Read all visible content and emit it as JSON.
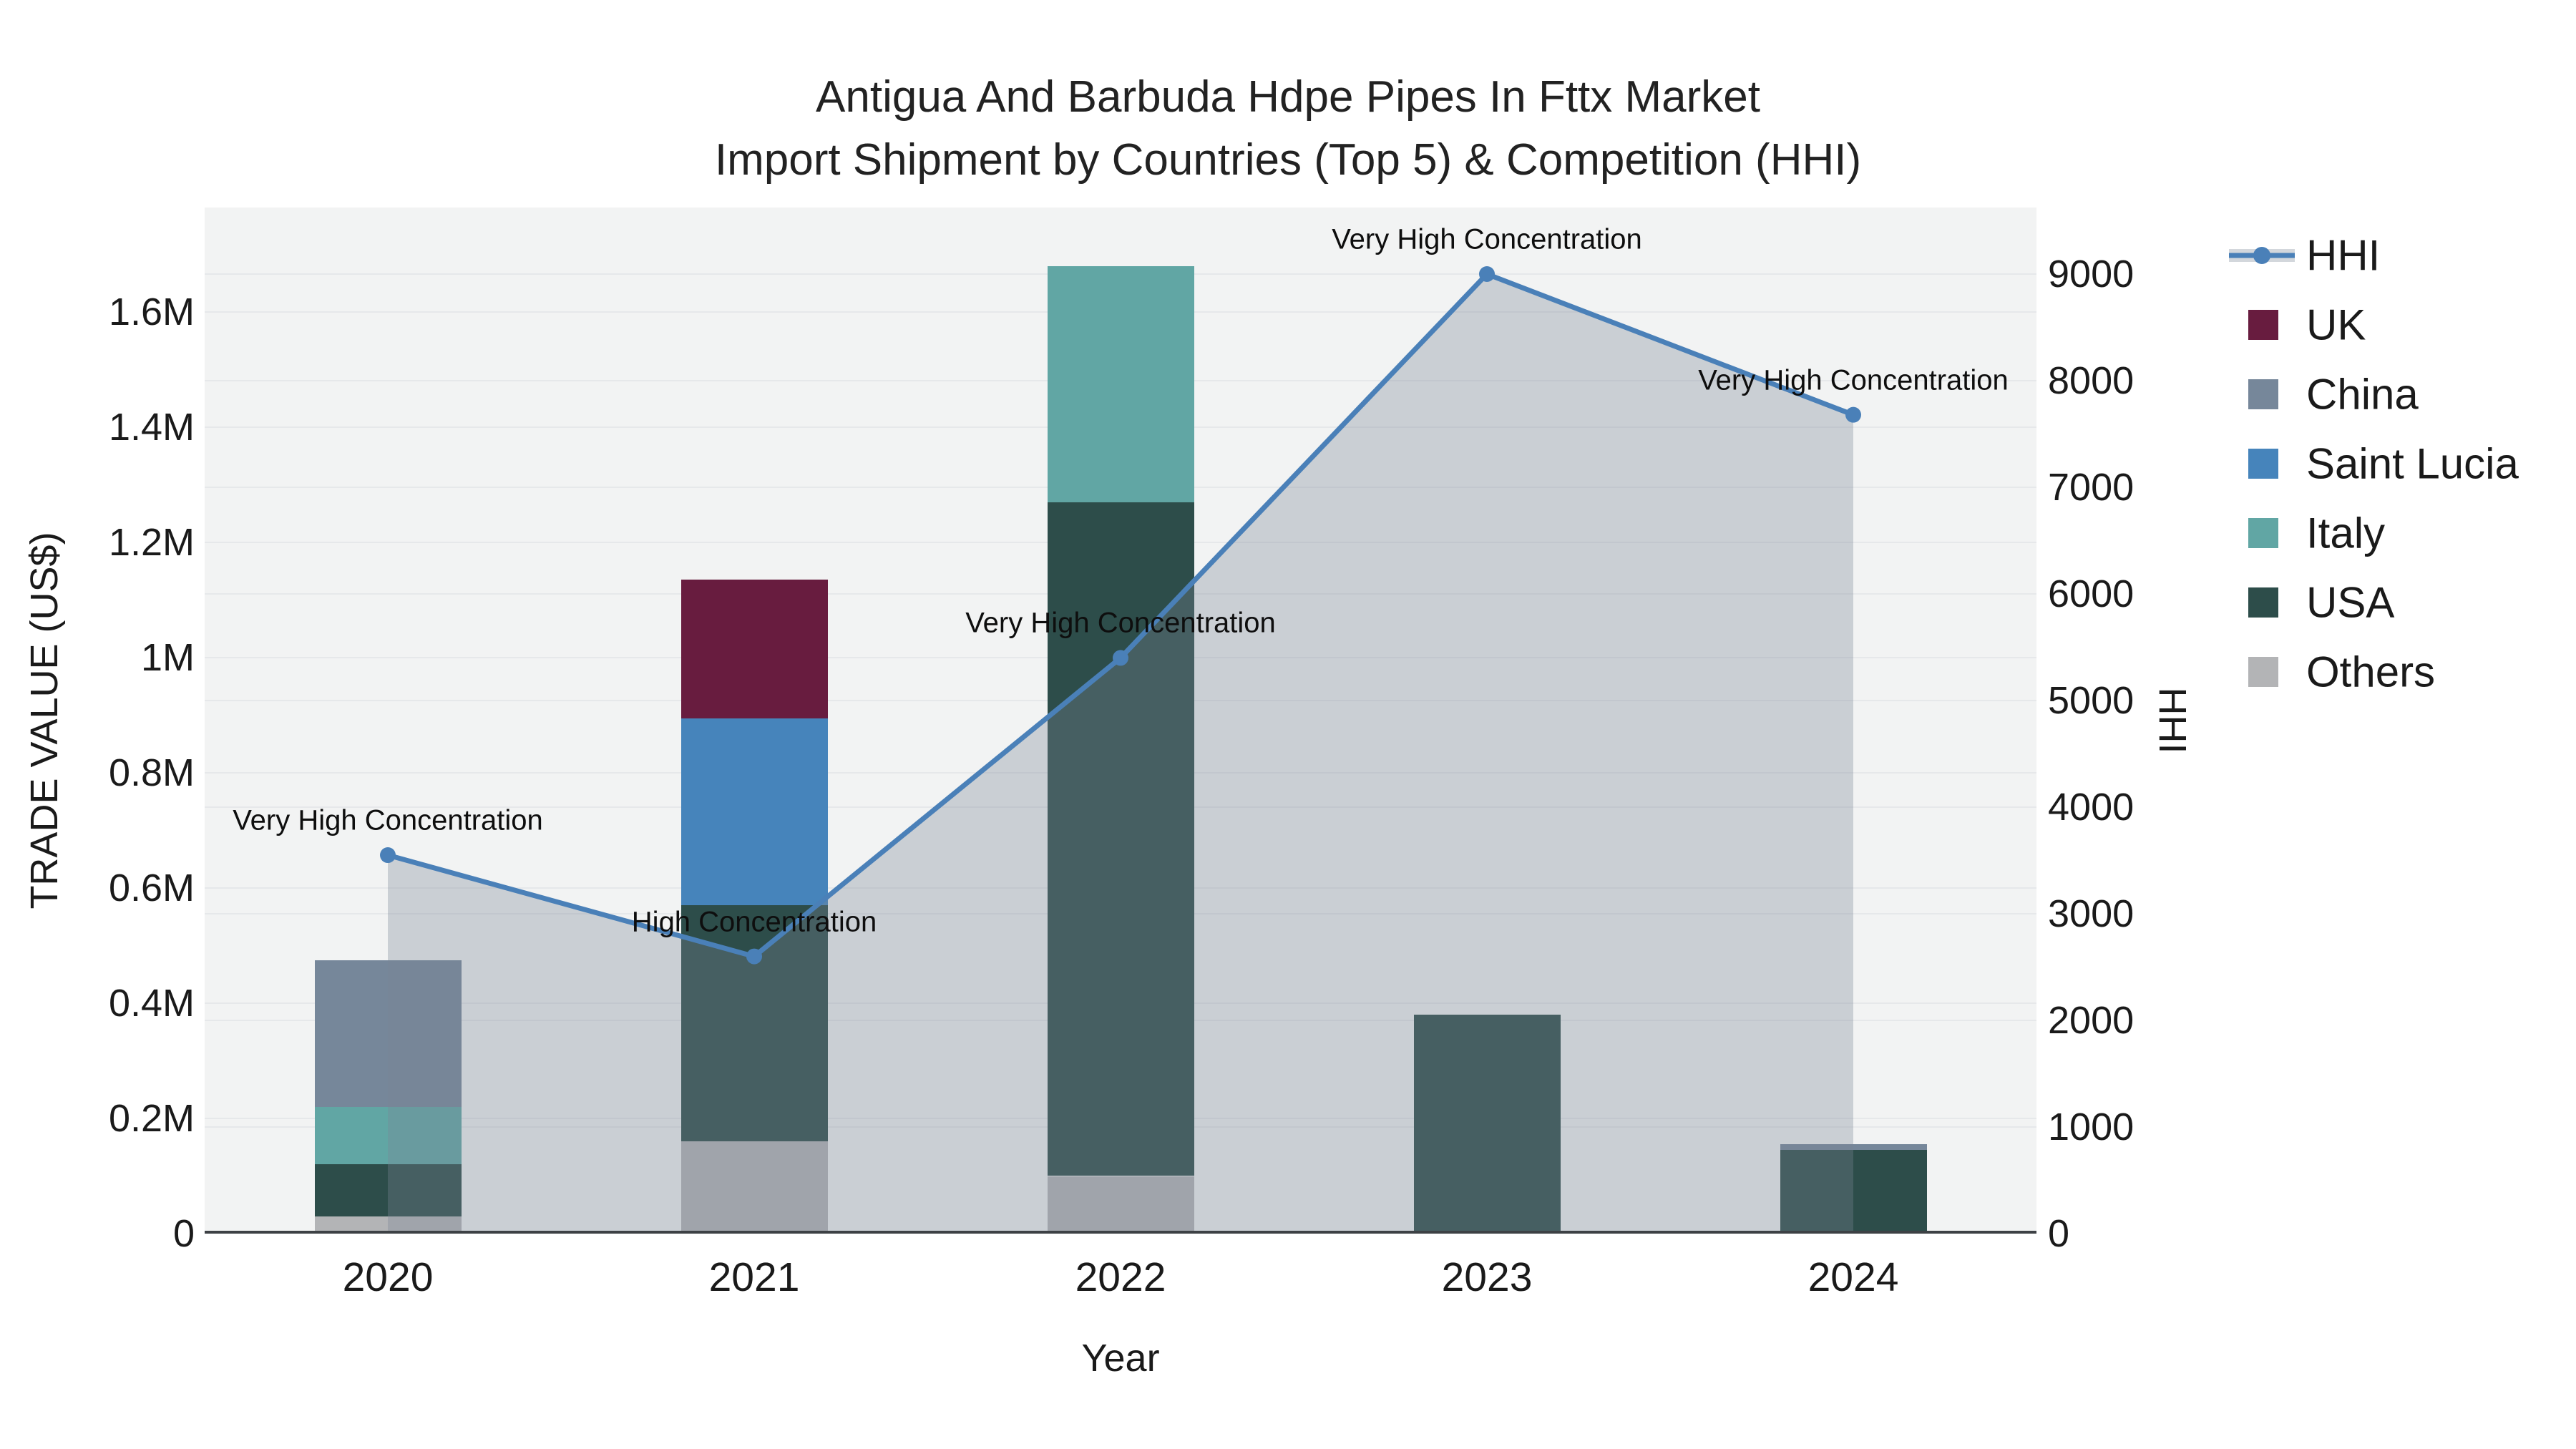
{
  "title": {
    "line1": "Antigua And Barbuda Hdpe Pipes In Fttx Market",
    "line2": "Import Shipment by Countries (Top 5) & Competition (HHI)"
  },
  "chart_data": {
    "type": "bar",
    "subtype": "stacked-bars-with-dual-axis-line",
    "title": "Antigua And Barbuda Hdpe Pipes In Fttx Market Import Shipment by Countries (Top 5) & Competition (HHI)",
    "categories": [
      "2020",
      "2021",
      "2022",
      "2023",
      "2024"
    ],
    "x_axis_label": "Year",
    "y_left": {
      "label": "TRADE VALUE (US$)",
      "lim": [
        0,
        1600000
      ],
      "ticks": [
        0,
        200000,
        400000,
        600000,
        800000,
        1000000,
        1200000,
        1400000,
        1600000
      ],
      "tick_labels": [
        "0",
        "0.2M",
        "0.4M",
        "0.6M",
        "0.8M",
        "1M",
        "1.2M",
        "1.4M",
        "1.6M"
      ],
      "grid": true
    },
    "y_right": {
      "label": "HHI",
      "lim": [
        0,
        9000
      ],
      "ticks": [
        0,
        1000,
        2000,
        3000,
        4000,
        5000,
        6000,
        7000,
        8000,
        9000
      ],
      "tick_labels": [
        "0",
        "1000",
        "2000",
        "3000",
        "4000",
        "5000",
        "6000",
        "7000",
        "8000",
        "9000"
      ],
      "grid": true
    },
    "series": [
      {
        "name": "Others",
        "color": "#b3b4b6",
        "values": [
          30000,
          160000,
          100000,
          0,
          5000
        ]
      },
      {
        "name": "USA",
        "color": "#2d4d4a",
        "values": [
          90000,
          410000,
          1170000,
          380000,
          140000
        ]
      },
      {
        "name": "Italy",
        "color": "#61a6a4",
        "values": [
          100000,
          0,
          410000,
          0,
          0
        ]
      },
      {
        "name": "Saint Lucia",
        "color": "#4684bb",
        "values": [
          0,
          325000,
          0,
          0,
          0
        ]
      },
      {
        "name": "China",
        "color": "#76879a",
        "values": [
          255000,
          0,
          0,
          0,
          10000
        ]
      },
      {
        "name": "UK",
        "color": "#681c3f",
        "values": [
          0,
          240000,
          0,
          0,
          0
        ]
      }
    ],
    "hhi_line": {
      "name": "HHI",
      "color": "#4a80b8",
      "fill": "rgba(121,134,148,0.33)",
      "values": [
        3550,
        2600,
        5400,
        9000,
        7680
      ]
    },
    "annotations": [
      "Very High Concentration",
      "High Concentration",
      "Very High Concentration",
      "Very High Concentration",
      "Very High Concentration"
    ],
    "legend": [
      "HHI",
      "UK",
      "China",
      "Saint Lucia",
      "Italy",
      "USA",
      "Others"
    ],
    "legend_position": "right"
  },
  "colors": {
    "plot_background": "#f2f3f3",
    "grid": "#e6e8ea",
    "axis_line": "#3d4145",
    "hhi_line": "#4a80b8",
    "hhi_area": "rgba(121,134,148,0.33)",
    "uk": "#681c3f",
    "china": "#76879a",
    "saint_lucia": "#4684bb",
    "italy": "#61a6a4",
    "usa": "#2d4d4a",
    "others": "#b3b4b6"
  }
}
